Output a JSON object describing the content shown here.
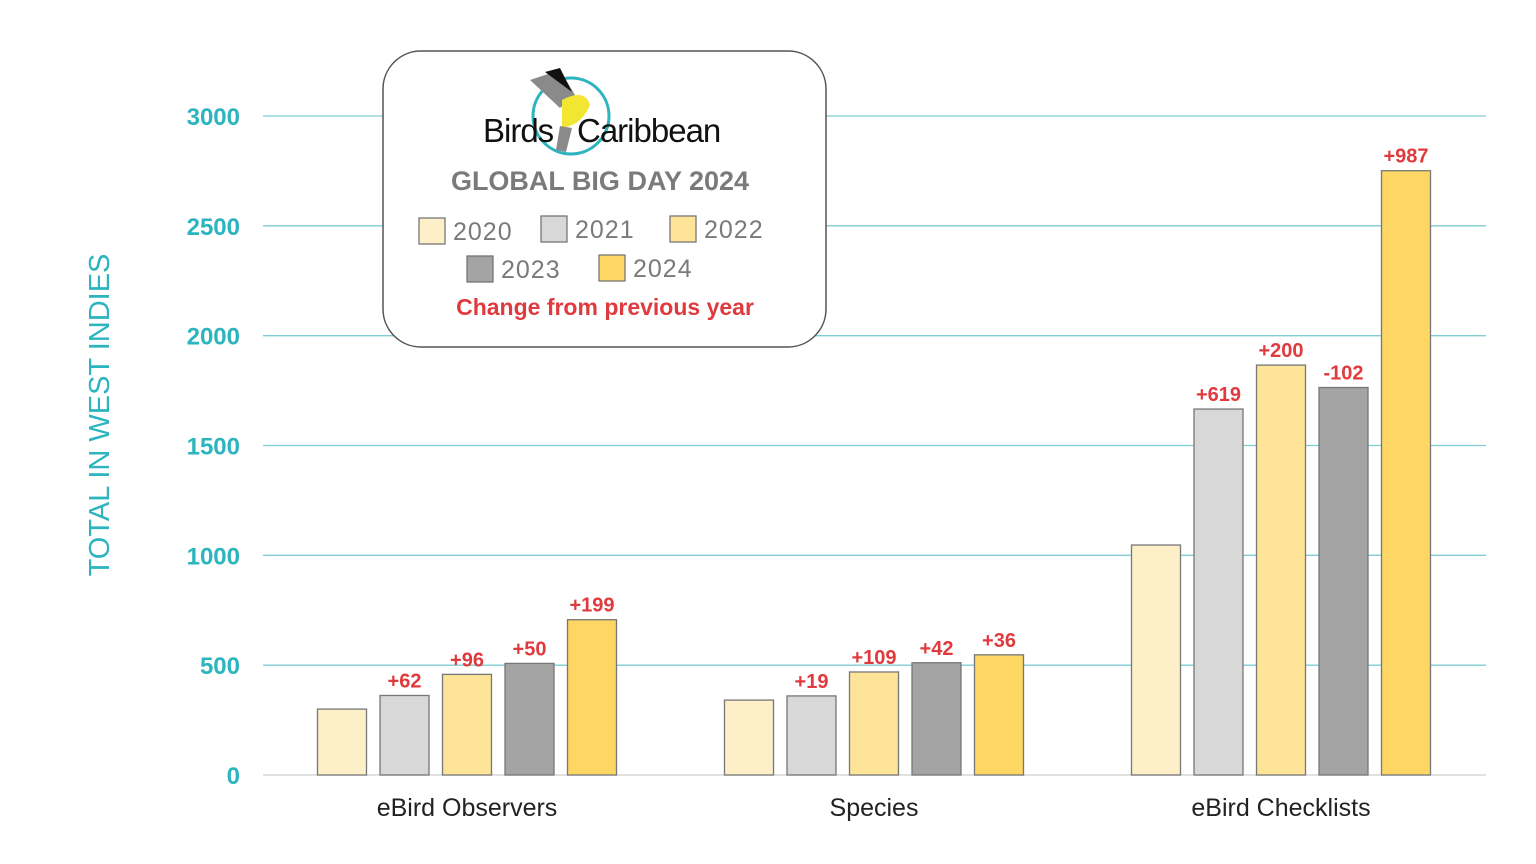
{
  "chart_data": {
    "type": "bar",
    "title": "GLOBAL BIG DAY 2024",
    "brand": "BirdsCaribbean",
    "ylabel": "TOTAL IN WEST INDIES",
    "xlabel": "",
    "ylim": [
      0,
      3000
    ],
    "yticks": [
      0,
      500,
      1000,
      1500,
      2000,
      2500,
      3000
    ],
    "grid": true,
    "legend_position": "top-left",
    "annotation_note": "Change from previous year",
    "categories": [
      "eBird Observers",
      "Species",
      "eBird Checklists"
    ],
    "series": [
      {
        "name": "2020",
        "color": "#fdf0c8",
        "values": [
          300,
          341,
          1047
        ],
        "labels": [
          "",
          "",
          ""
        ]
      },
      {
        "name": "2021",
        "color": "#d8d8d8",
        "values": [
          362,
          360,
          1666
        ],
        "labels": [
          "+62",
          "+19",
          "+619"
        ]
      },
      {
        "name": "2022",
        "color": "#fde498",
        "values": [
          458,
          469,
          1866
        ],
        "labels": [
          "+96",
          "+109",
          "+200"
        ]
      },
      {
        "name": "2023",
        "color": "#a4a4a4",
        "values": [
          508,
          511,
          1764
        ],
        "labels": [
          "+50",
          "+42",
          "-102"
        ]
      },
      {
        "name": "2024",
        "color": "#fdd663",
        "values": [
          707,
          547,
          2751
        ],
        "labels": [
          "+199",
          "+36",
          "+987"
        ]
      }
    ],
    "colors": {
      "axis": "#2cb5bf",
      "grid": "#7fcdd2",
      "change": "#e03a3e"
    }
  }
}
